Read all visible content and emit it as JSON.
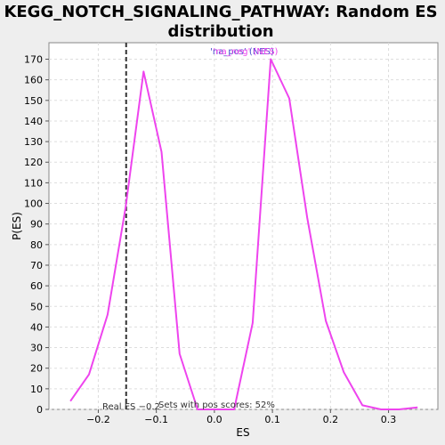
{
  "chart_data": {
    "type": "line",
    "title_line1": "KEGG_NOTCH_SIGNALING_PATHWAY: Random ES",
    "title_line2": "distribution",
    "xlabel": "ES",
    "ylabel": "P(ES)",
    "xlim": [
      -0.285,
      0.385
    ],
    "ylim": [
      0,
      178
    ],
    "x_ticks": [
      -0.2,
      -0.1,
      0.0,
      0.1,
      0.2,
      0.3
    ],
    "x_tick_labels": [
      "−0.2",
      "−0.1",
      "0.0",
      "0.1",
      "0.2",
      "0.3"
    ],
    "y_ticks": [
      0,
      10,
      20,
      30,
      40,
      50,
      60,
      70,
      80,
      90,
      100,
      110,
      120,
      130,
      140,
      150,
      160,
      170
    ],
    "grid": true,
    "series": [
      {
        "name": "'na_neg' (NES)",
        "color": "#ee44ee",
        "x": [
          -0.248,
          -0.216,
          -0.184,
          -0.153,
          -0.122,
          -0.091,
          -0.06,
          -0.029,
          0.003,
          0.034,
          0.066,
          0.097,
          0.129,
          0.16,
          0.192,
          0.223,
          0.255,
          0.287,
          0.318,
          0.35
        ],
        "values": [
          4,
          17,
          46,
          98,
          164,
          125,
          27,
          0,
          0,
          0,
          42,
          170,
          151,
          93,
          43,
          18,
          2,
          0,
          0,
          1
        ]
      }
    ],
    "legend": {
      "placement": "top-center",
      "entries": [
        {
          "text": "'na_pos' (NES)",
          "color": "#4444cc"
        },
        {
          "text": "'na_neg' (NES)",
          "color": "#ee44ee"
        }
      ]
    },
    "real_es": {
      "value": -0.152,
      "label": "Real ES −0.2",
      "color": "#333333"
    },
    "annotation": "Sets with pos scores: 52%"
  }
}
